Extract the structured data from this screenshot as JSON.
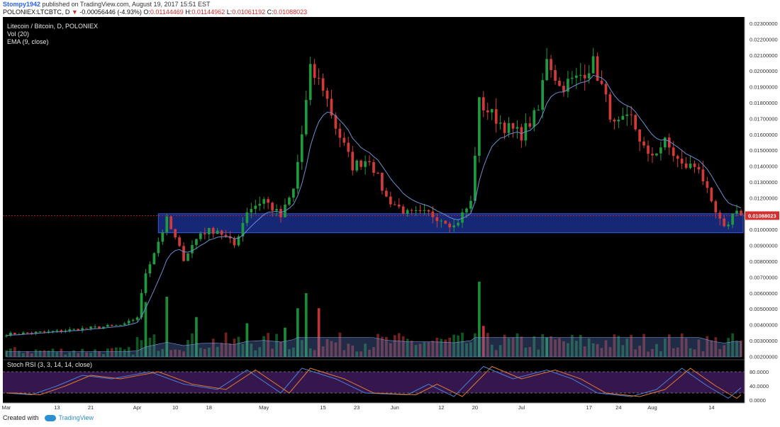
{
  "header": {
    "author": "Stompy1942",
    "published": "published on TradingView.com, August 19, 2017 15:51 EST",
    "symbol": "POLONIEX:LTCBTC, D",
    "arrow": "▼",
    "change": "-0.00056446 (-4.93%)",
    "o_label": "O:",
    "o_value": "0.01144469",
    "h_label": "H:",
    "h_value": "0.01144962",
    "l_label": "L:",
    "l_value": "0.01061192",
    "c_label": "C:",
    "c_value": "0.01088023"
  },
  "legend": {
    "pair": "Litecoin / Bitcoin, D, POLONIEX",
    "vol": "Vol (20)",
    "ema": "EMA (9, close)",
    "rsi": "Stoch RSI (3, 3, 14, 14, close)"
  },
  "footer": {
    "created": "Created with",
    "brand": "TradingView"
  },
  "colors": {
    "up": "#1f9a3e",
    "down": "#d23a3a",
    "bg": "#000000",
    "ema": "#6b8fd1",
    "zone": "#1a2e8a",
    "k_line": "#4a7fd6",
    "d_line": "#e07a2f",
    "rsi_band": "#3b1a55"
  },
  "chart_data": {
    "type": "candlestick",
    "price_axis": {
      "ticks": [
        "0.02300000",
        "0.02200000",
        "0.02100000",
        "0.02000000",
        "0.01900000",
        "0.01800000",
        "0.01700000",
        "0.01600000",
        "0.01500000",
        "0.01400000",
        "0.01300000",
        "0.01200000",
        "0.01100000",
        "0.01000000",
        "0.00900000",
        "0.00800000",
        "0.00700000",
        "0.00600000",
        "0.00500000",
        "0.00400000",
        "0.00300000",
        "0.00200000"
      ],
      "current_label": "0.01088023",
      "current_value": 0.01088023
    },
    "rsi_axis": {
      "ticks": [
        "80.0000",
        "40.0000",
        "0.0000"
      ]
    },
    "x_axis": {
      "ticks": [
        "Mar",
        "13",
        "21",
        "Apr",
        "10",
        "18",
        "May",
        "15",
        "23",
        "Jun",
        "12",
        "20",
        "Jul",
        "17",
        "24",
        "Aug",
        "14"
      ]
    },
    "support_zone": {
      "from": 0.0098,
      "to": 0.011
    },
    "keypoints": [
      {
        "d": 0,
        "p": 0.0034
      },
      {
        "d": 12,
        "p": 0.0036
      },
      {
        "d": 20,
        "p": 0.0038
      },
      {
        "d": 28,
        "p": 0.004
      },
      {
        "d": 31,
        "p": 0.0045
      },
      {
        "d": 33,
        "p": 0.0073
      },
      {
        "d": 35,
        "p": 0.0086
      },
      {
        "d": 38,
        "p": 0.0106
      },
      {
        "d": 42,
        "p": 0.0082
      },
      {
        "d": 46,
        "p": 0.0098
      },
      {
        "d": 50,
        "p": 0.01
      },
      {
        "d": 54,
        "p": 0.009
      },
      {
        "d": 57,
        "p": 0.0112
      },
      {
        "d": 61,
        "p": 0.0119
      },
      {
        "d": 65,
        "p": 0.0108
      },
      {
        "d": 68,
        "p": 0.0125
      },
      {
        "d": 70,
        "p": 0.016
      },
      {
        "d": 72,
        "p": 0.02
      },
      {
        "d": 75,
        "p": 0.019
      },
      {
        "d": 78,
        "p": 0.0165
      },
      {
        "d": 82,
        "p": 0.014
      },
      {
        "d": 86,
        "p": 0.0145
      },
      {
        "d": 90,
        "p": 0.012
      },
      {
        "d": 95,
        "p": 0.011
      },
      {
        "d": 100,
        "p": 0.011
      },
      {
        "d": 104,
        "p": 0.0106
      },
      {
        "d": 106,
        "p": 0.0102
      },
      {
        "d": 110,
        "p": 0.0117
      },
      {
        "d": 112,
        "p": 0.018
      },
      {
        "d": 114,
        "p": 0.0175
      },
      {
        "d": 118,
        "p": 0.0165
      },
      {
        "d": 122,
        "p": 0.016
      },
      {
        "d": 126,
        "p": 0.0175
      },
      {
        "d": 128,
        "p": 0.021
      },
      {
        "d": 131,
        "p": 0.019
      },
      {
        "d": 135,
        "p": 0.0195
      },
      {
        "d": 139,
        "p": 0.0205
      },
      {
        "d": 141,
        "p": 0.019
      },
      {
        "d": 144,
        "p": 0.0165
      },
      {
        "d": 148,
        "p": 0.017
      },
      {
        "d": 152,
        "p": 0.0145
      },
      {
        "d": 156,
        "p": 0.0155
      },
      {
        "d": 160,
        "p": 0.014
      },
      {
        "d": 164,
        "p": 0.014
      },
      {
        "d": 167,
        "p": 0.0115
      },
      {
        "d": 170,
        "p": 0.01
      },
      {
        "d": 173,
        "p": 0.0114
      },
      {
        "d": 174,
        "p": 0.0109
      }
    ],
    "volume_spikes": [
      {
        "d": 33,
        "v": 0.62
      },
      {
        "d": 38,
        "v": 0.68
      },
      {
        "d": 45,
        "v": 0.45
      },
      {
        "d": 57,
        "v": 0.38
      },
      {
        "d": 66,
        "v": 0.33
      },
      {
        "d": 69,
        "v": 0.55
      },
      {
        "d": 71,
        "v": 0.72
      },
      {
        "d": 74,
        "v": 0.55
      },
      {
        "d": 112,
        "v": 0.85
      },
      {
        "d": 113,
        "v": 0.35
      },
      {
        "d": 128,
        "v": 0.22
      }
    ],
    "rsi_keypoints": [
      {
        "d": 0,
        "k": 20
      },
      {
        "d": 6,
        "k": 15
      },
      {
        "d": 12,
        "k": 40
      },
      {
        "d": 18,
        "k": 70
      },
      {
        "d": 25,
        "k": 60
      },
      {
        "d": 34,
        "k": 80
      },
      {
        "d": 42,
        "k": 45
      },
      {
        "d": 50,
        "k": 30
      },
      {
        "d": 57,
        "k": 85
      },
      {
        "d": 65,
        "k": 20
      },
      {
        "d": 70,
        "k": 90
      },
      {
        "d": 78,
        "k": 60
      },
      {
        "d": 85,
        "k": 20
      },
      {
        "d": 95,
        "k": 15
      },
      {
        "d": 100,
        "k": 45
      },
      {
        "d": 106,
        "k": 10
      },
      {
        "d": 113,
        "k": 95
      },
      {
        "d": 120,
        "k": 60
      },
      {
        "d": 128,
        "k": 85
      },
      {
        "d": 134,
        "k": 60
      },
      {
        "d": 140,
        "k": 20
      },
      {
        "d": 148,
        "k": 10
      },
      {
        "d": 154,
        "k": 30
      },
      {
        "d": 160,
        "k": 90
      },
      {
        "d": 166,
        "k": 40
      },
      {
        "d": 171,
        "k": 5
      },
      {
        "d": 174,
        "k": 35
      }
    ]
  }
}
